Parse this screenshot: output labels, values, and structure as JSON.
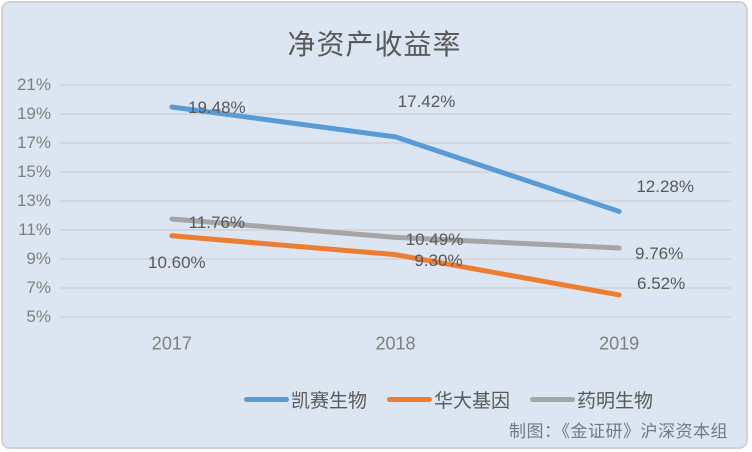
{
  "chart_data": {
    "type": "line",
    "title": "净资产收益率",
    "categories": [
      "2017",
      "2018",
      "2019"
    ],
    "series": [
      {
        "name": "凯赛生物",
        "color": "#5b9bd5",
        "values": [
          19.48,
          17.42,
          12.28
        ],
        "labels": [
          "19.48%",
          "17.42%",
          "12.28%"
        ]
      },
      {
        "name": "华大基因",
        "color": "#ed7d31",
        "values": [
          10.6,
          9.3,
          6.52
        ],
        "labels": [
          "10.60%",
          "9.30%",
          "6.52%"
        ]
      },
      {
        "name": "药明生物",
        "color": "#a5a5a5",
        "values": [
          11.76,
          10.49,
          9.76
        ],
        "labels": [
          "11.76%",
          "10.49%",
          "9.76%"
        ]
      }
    ],
    "y_axis": {
      "unit": "%",
      "min": 5,
      "max": 21,
      "ticks": [
        21,
        19,
        17,
        15,
        13,
        11,
        9,
        7,
        5
      ],
      "tick_labels": [
        "21%",
        "19%",
        "17%",
        "15%",
        "13%",
        "11%",
        "9%",
        "7%",
        "5%"
      ]
    },
    "grid": true,
    "legend_position": "bottom-center",
    "attribution": "制图：《金证研》沪深资本组",
    "colors": {
      "background": "#dbe6f2",
      "border": "#d2d2d2",
      "gridline": "#d3d7db",
      "title_text": "#595959",
      "axis_text": "#7f7f7f",
      "label_text": "#595959"
    }
  }
}
